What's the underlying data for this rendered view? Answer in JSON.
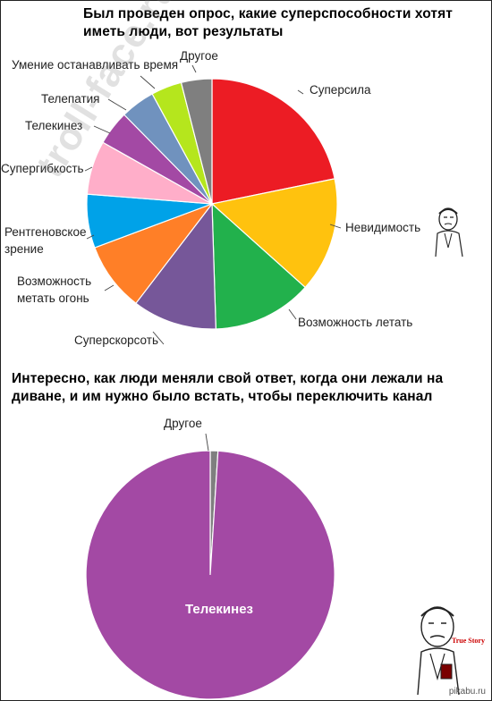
{
  "texts": {
    "title1": "Был проведен опрос, какие суперспособности хотят иметь люди, вот результаты",
    "title2": "Интересно, как люди меняли свой ответ, когда они лежали на диване, и им нужно было встать, чтобы переключить канал",
    "watermark": "troll-face.ru",
    "pikabu": "pikabu.ru",
    "true_story": "True Story"
  },
  "chart_data": [
    {
      "type": "pie",
      "title": "Был проведен опрос, какие суперспособности хотят иметь люди, вот результаты",
      "start": "top, clockwise",
      "slices": [
        {
          "label": "Суперсила",
          "value": 22,
          "color": "#ec1c24"
        },
        {
          "label": "Невидимость",
          "value": 15,
          "color": "#ffc20e"
        },
        {
          "label": "Возможность летать",
          "value": 13,
          "color": "#22b14c"
        },
        {
          "label": "Суперскорсоть",
          "value": 11,
          "color": "#765799"
        },
        {
          "label": "Возможность метать огонь",
          "value": 9,
          "color": "#ff7f27"
        },
        {
          "label": "Рентгеновское зрение",
          "value": 7,
          "color": "#00a2e8"
        },
        {
          "label": "Супергибкость",
          "value": 7,
          "color": "#ffaec9"
        },
        {
          "label": "Телекинез",
          "value": 4.5,
          "color": "#a349a4"
        },
        {
          "label": "Телепатия",
          "value": 4.5,
          "color": "#7092be"
        },
        {
          "label": "Умение останавливать время",
          "value": 4,
          "color": "#b5e61d"
        },
        {
          "label": "Другое",
          "value": 4,
          "color": "#7f7f7f"
        }
      ]
    },
    {
      "type": "pie",
      "title": "Интересно, как люди меняли свой ответ, когда они лежали на диване, и им нужно было встать, чтобы переключить канал",
      "start": "top, clockwise",
      "slices": [
        {
          "label": "Другое",
          "value": 1,
          "color": "#7f7f7f"
        },
        {
          "label": "Телекинез",
          "value": 99,
          "color": "#a349a4"
        }
      ]
    }
  ]
}
